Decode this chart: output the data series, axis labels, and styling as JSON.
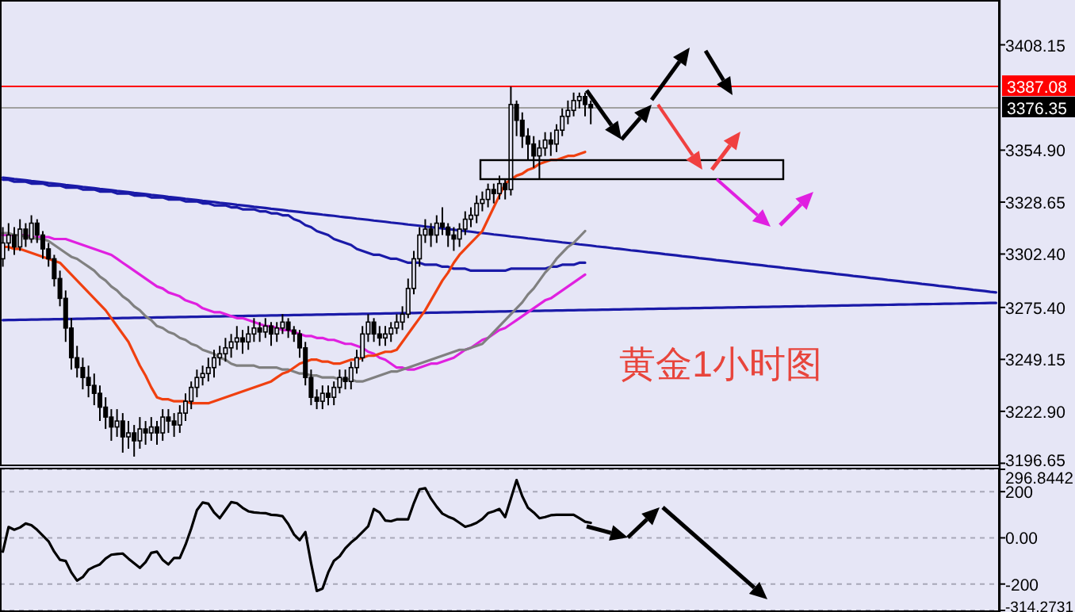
{
  "chart_data": [
    {
      "type": "candlestick",
      "color": "#000000",
      "annotations": [
        "黄金1小时图"
      ],
      "categories": [
        null,
        null,
        null,
        null,
        null,
        null,
        null,
        null,
        null,
        null,
        null,
        null,
        null,
        null,
        null,
        null,
        null,
        null,
        null,
        null,
        null,
        null,
        null,
        null,
        null,
        null,
        null,
        null,
        null,
        null,
        null,
        null,
        null,
        null,
        null,
        null,
        null,
        null,
        null,
        null,
        null,
        null,
        null,
        null,
        null,
        null,
        null,
        null,
        null,
        null,
        null,
        null,
        null,
        null,
        null,
        null,
        null,
        null,
        null,
        null,
        null,
        null,
        null,
        null,
        null,
        null,
        null,
        null,
        null,
        null,
        null,
        null,
        null,
        null,
        null,
        null,
        null,
        null,
        null,
        null,
        null,
        null,
        null,
        null,
        null,
        null,
        null,
        null,
        null,
        null,
        null,
        null,
        null,
        null,
        null,
        null,
        null,
        null,
        null,
        null,
        null,
        null,
        null,
        null,
        null,
        null,
        null,
        null,
        null,
        null,
        null,
        null,
        null,
        null,
        null,
        null,
        null,
        null,
        null,
        null,
        null,
        null,
        null,
        null,
        null,
        null,
        null,
        null,
        null,
        null,
        null,
        null,
        null,
        null,
        null,
        null,
        null,
        null,
        null,
        null,
        null,
        null,
        null,
        null,
        null,
        null,
        null,
        null,
        null,
        null,
        null,
        null,
        null,
        null,
        null,
        null,
        null,
        null,
        null,
        null,
        null,
        null,
        null,
        null,
        null,
        null,
        null,
        null,
        null,
        null,
        null,
        null,
        null,
        null,
        null
      ],
      "ohlc": [
        [
          3300,
          3316,
          3296,
          3308
        ],
        [
          3308,
          3318,
          3304,
          3312
        ],
        [
          3312,
          3316,
          3302,
          3306
        ],
        [
          3306,
          3320,
          3304,
          3315
        ],
        [
          3315,
          3318,
          3306,
          3310
        ],
        [
          3310,
          3322,
          3308,
          3318
        ],
        [
          3318,
          3320,
          3308,
          3312
        ],
        [
          3312,
          3314,
          3300,
          3305
        ],
        [
          3305,
          3308,
          3296,
          3300
        ],
        [
          3300,
          3302,
          3286,
          3290
        ],
        [
          3290,
          3294,
          3276,
          3280
        ],
        [
          3280,
          3284,
          3258,
          3265
        ],
        [
          3265,
          3270,
          3244,
          3250
        ],
        [
          3250,
          3256,
          3240,
          3245
        ],
        [
          3245,
          3250,
          3234,
          3240
        ],
        [
          3240,
          3246,
          3230,
          3236
        ],
        [
          3236,
          3242,
          3226,
          3232
        ],
        [
          3232,
          3236,
          3218,
          3225
        ],
        [
          3225,
          3230,
          3214,
          3220
        ],
        [
          3220,
          3224,
          3208,
          3215
        ],
        [
          3215,
          3224,
          3210,
          3218
        ],
        [
          3218,
          3222,
          3202,
          3210
        ],
        [
          3210,
          3218,
          3204,
          3212
        ],
        [
          3212,
          3216,
          3200,
          3208
        ],
        [
          3208,
          3220,
          3204,
          3214
        ],
        [
          3214,
          3218,
          3206,
          3212
        ],
        [
          3212,
          3220,
          3208,
          3215
        ],
        [
          3215,
          3218,
          3206,
          3212
        ],
        [
          3212,
          3224,
          3208,
          3220
        ],
        [
          3220,
          3224,
          3212,
          3218
        ],
        [
          3218,
          3222,
          3210,
          3216
        ],
        [
          3216,
          3226,
          3212,
          3222
        ],
        [
          3222,
          3232,
          3218,
          3228
        ],
        [
          3228,
          3238,
          3224,
          3235
        ],
        [
          3235,
          3244,
          3230,
          3240
        ],
        [
          3240,
          3246,
          3236,
          3242
        ],
        [
          3242,
          3250,
          3238,
          3245
        ],
        [
          3245,
          3254,
          3240,
          3250
        ],
        [
          3250,
          3256,
          3246,
          3252
        ],
        [
          3252,
          3260,
          3248,
          3255
        ],
        [
          3255,
          3262,
          3250,
          3258
        ],
        [
          3258,
          3266,
          3254,
          3260
        ],
        [
          3260,
          3264,
          3252,
          3258
        ],
        [
          3258,
          3266,
          3254,
          3262
        ],
        [
          3262,
          3270,
          3258,
          3265
        ],
        [
          3265,
          3268,
          3258,
          3263
        ],
        [
          3263,
          3270,
          3260,
          3266
        ],
        [
          3266,
          3268,
          3256,
          3262
        ],
        [
          3262,
          3268,
          3258,
          3265
        ],
        [
          3265,
          3272,
          3262,
          3268
        ],
        [
          3268,
          3270,
          3260,
          3264
        ],
        [
          3264,
          3266,
          3258,
          3262
        ],
        [
          3262,
          3264,
          3250,
          3255
        ],
        [
          3255,
          3258,
          3236,
          3240
        ],
        [
          3240,
          3244,
          3226,
          3230
        ],
        [
          3230,
          3234,
          3224,
          3228
        ],
        [
          3228,
          3236,
          3224,
          3232
        ],
        [
          3232,
          3236,
          3226,
          3230
        ],
        [
          3230,
          3238,
          3226,
          3235
        ],
        [
          3235,
          3244,
          3232,
          3240
        ],
        [
          3240,
          3244,
          3234,
          3238
        ],
        [
          3238,
          3248,
          3234,
          3245
        ],
        [
          3245,
          3254,
          3242,
          3250
        ],
        [
          3250,
          3266,
          3248,
          3262
        ],
        [
          3262,
          3272,
          3258,
          3268
        ],
        [
          3268,
          3270,
          3258,
          3262
        ],
        [
          3262,
          3266,
          3256,
          3260
        ],
        [
          3260,
          3266,
          3256,
          3262
        ],
        [
          3262,
          3268,
          3258,
          3265
        ],
        [
          3265,
          3272,
          3262,
          3268
        ],
        [
          3268,
          3276,
          3264,
          3272
        ],
        [
          3272,
          3290,
          3270,
          3285
        ],
        [
          3285,
          3304,
          3282,
          3300
        ],
        [
          3300,
          3316,
          3296,
          3312
        ],
        [
          3312,
          3320,
          3308,
          3315
        ],
        [
          3315,
          3318,
          3306,
          3312
        ],
        [
          3312,
          3322,
          3308,
          3318
        ],
        [
          3318,
          3326,
          3312,
          3316
        ],
        [
          3316,
          3318,
          3306,
          3312
        ],
        [
          3312,
          3316,
          3304,
          3310
        ],
        [
          3310,
          3318,
          3306,
          3315
        ],
        [
          3315,
          3324,
          3312,
          3320
        ],
        [
          3320,
          3326,
          3316,
          3322
        ],
        [
          3322,
          3332,
          3318,
          3328
        ],
        [
          3328,
          3334,
          3324,
          3330
        ],
        [
          3330,
          3338,
          3326,
          3335
        ],
        [
          3335,
          3338,
          3328,
          3333
        ],
        [
          3333,
          3342,
          3330,
          3338
        ],
        [
          3338,
          3340,
          3330,
          3335
        ],
        [
          3335,
          3387,
          3332,
          3378
        ],
        [
          3378,
          3380,
          3362,
          3370
        ],
        [
          3370,
          3374,
          3356,
          3362
        ],
        [
          3362,
          3366,
          3350,
          3358
        ],
        [
          3358,
          3362,
          3346,
          3352
        ],
        [
          3352,
          3360,
          3340,
          3356
        ],
        [
          3356,
          3364,
          3352,
          3360
        ],
        [
          3360,
          3364,
          3352,
          3358
        ],
        [
          3358,
          3368,
          3354,
          3365
        ],
        [
          3365,
          3376,
          3362,
          3372
        ],
        [
          3372,
          3380,
          3368,
          3375
        ],
        [
          3375,
          3384,
          3372,
          3380
        ],
        [
          3380,
          3384,
          3376,
          3382
        ],
        [
          3382,
          3384,
          3372,
          3378
        ],
        [
          3378,
          3380,
          3368,
          3376.35
        ],
        null,
        null,
        null,
        null,
        null,
        null,
        null,
        null,
        null,
        null,
        null,
        null,
        null,
        null,
        null,
        null,
        null,
        null,
        null,
        null,
        null,
        null,
        null,
        null,
        null,
        null,
        null,
        null,
        null,
        null,
        null,
        null,
        null,
        null,
        null,
        null,
        null,
        null,
        null,
        null,
        null,
        null,
        null,
        null,
        null,
        null,
        null,
        null,
        null,
        null,
        null,
        null,
        null,
        null,
        null,
        null,
        null,
        null,
        null,
        null,
        null,
        null,
        null,
        null,
        null,
        null,
        null,
        null,
        null,
        null,
        null
      ],
      "series": [
        {
          "type": "line",
          "color": "#1a1aa8",
          "values": [
            3341,
            3340.7,
            3340.3,
            3340,
            3339.7,
            3339.3,
            3339,
            3338.7,
            3338.3,
            3338,
            3337.7,
            3337.3,
            3337,
            3336.7,
            3336.3,
            3336,
            3335.7,
            3335.3,
            3335,
            3334.7,
            3334.3,
            3334,
            3333.7,
            3333.3,
            3333,
            3332.7,
            3332.3,
            3332,
            3331.7,
            3331.3,
            3331,
            3330.7,
            3330.3,
            3330,
            3329.7,
            3329.3,
            3329,
            3328.7,
            3328.3,
            3328,
            3327.7,
            3327.3,
            3327,
            3326.7,
            3326.3,
            3326,
            3325.7,
            3325.3,
            3325,
            3324.7,
            3324.3,
            3324,
            3323.7,
            3323.3,
            3323,
            3322.7,
            3322.3,
            3322,
            3321.7,
            3321.3,
            3321,
            3320.7,
            3320.3,
            3320,
            3319.7,
            3319.3,
            3319,
            3318.7,
            3318.3,
            3318,
            3317.7,
            3317.3,
            3317,
            3316.7,
            3316.3,
            3316,
            3315.7,
            3315.3,
            3315,
            3314.7,
            3314.3,
            3314,
            3313.7,
            3313.3,
            3313,
            3312.7,
            3312.3,
            3312,
            3311.7,
            3311.3,
            3311,
            3310.7,
            3310.3,
            3310,
            3309.7,
            3309.3,
            3309,
            3308.7,
            3308.3,
            3308,
            3307.7,
            3307.3,
            3307,
            3306.7,
            3306.3,
            3306,
            3305.7,
            3305.3,
            3305,
            3304.7,
            3304.3,
            3304,
            3303.7,
            3303.3,
            3303,
            3302.7,
            3302.3,
            3302,
            3301.7,
            3301.3,
            3301,
            3300.7,
            3300.3,
            3300,
            3299.7,
            3299.3,
            3299,
            3298.7,
            3298.3,
            3298,
            3297.7,
            3297.3,
            3297,
            3296.7,
            3296.3,
            3296,
            3295.7,
            3295.3,
            3295,
            3294.7,
            3294.3,
            3294,
            3293.7,
            3293.3,
            3293,
            3292.7,
            3292.3,
            3292,
            3291.7,
            3291.3,
            3291,
            3290.7,
            3290.3,
            3290,
            3289.7,
            3289.3,
            3289,
            3288.7,
            3288.3,
            3288,
            3287.7,
            3287.3,
            3287,
            3286.7,
            3286.3,
            3286,
            3285.7,
            3285.3,
            3285,
            3284.7,
            3284.3,
            3284,
            3283.7,
            3283.3,
            3283
          ]
        },
        {
          "type": "line",
          "color": "#1a1aa8",
          "values": [
            3269,
            3269.05,
            3269.1,
            3269.15,
            3269.2,
            3269.25,
            3269.3,
            3269.35,
            3269.4,
            3269.45,
            3269.5,
            3269.55,
            3269.6,
            3269.65,
            3269.7,
            3269.75,
            3269.8,
            3269.85,
            3269.9,
            3269.95,
            3270,
            3270.05,
            3270.1,
            3270.15,
            3270.2,
            3270.25,
            3270.3,
            3270.35,
            3270.4,
            3270.45,
            3270.5,
            3270.55,
            3270.6,
            3270.65,
            3270.7,
            3270.75,
            3270.8,
            3270.85,
            3270.9,
            3270.95,
            3271,
            3271.05,
            3271.1,
            3271.15,
            3271.2,
            3271.25,
            3271.3,
            3271.35,
            3271.4,
            3271.45,
            3271.5,
            3271.55,
            3271.6,
            3271.65,
            3271.7,
            3271.75,
            3271.8,
            3271.85,
            3271.9,
            3271.95,
            3272,
            3272.05,
            3272.1,
            3272.15,
            3272.2,
            3272.25,
            3272.3,
            3272.35,
            3272.4,
            3272.45,
            3272.5,
            3272.55,
            3272.6,
            3272.65,
            3272.7,
            3272.75,
            3272.8,
            3272.85,
            3272.9,
            3272.95,
            3273,
            3273.05,
            3273.1,
            3273.15,
            3273.2,
            3273.25,
            3273.3,
            3273.35,
            3273.4,
            3273.45,
            3273.5,
            3273.55,
            3273.6,
            3273.65,
            3273.7,
            3273.75,
            3273.8,
            3273.85,
            3273.9,
            3273.95,
            3274,
            3274.05,
            3274.1,
            3274.15,
            3274.2,
            3274.25,
            3274.3,
            3274.35,
            3274.4,
            3274.45,
            3274.5,
            3274.55,
            3274.6,
            3274.65,
            3274.7,
            3274.75,
            3274.8,
            3274.85,
            3274.9,
            3274.95,
            3275,
            3275.05,
            3275.1,
            3275.15,
            3275.2,
            3275.25,
            3275.3,
            3275.35,
            3275.4,
            3275.45,
            3275.5,
            3275.55,
            3275.6,
            3275.65,
            3275.7,
            3275.75,
            3275.8,
            3275.85,
            3275.9,
            3275.95,
            3276,
            3276.05,
            3276.1,
            3276.15,
            3276.2,
            3276.25,
            3276.3,
            3276.35,
            3276.4,
            3276.45,
            3276.5,
            3276.55,
            3276.6,
            3276.65,
            3276.7,
            3276.75,
            3276.8,
            3276.85,
            3276.9,
            3276.95,
            3277,
            3277.05,
            3277.1,
            3277.15,
            3277.2,
            3277.25,
            3277.3,
            3277.35,
            3277.4,
            3277.45,
            3277.5,
            3277.55,
            3277.6,
            3277.65,
            3277.7
          ]
        },
        {
          "type": "line",
          "color": "#1a1aa8",
          "values": [
            3340,
            3340,
            3339,
            3339,
            3339,
            3338,
            3338,
            3338,
            3337,
            3337,
            3337,
            3336,
            3336,
            3336,
            3335,
            3335,
            3335,
            3334,
            3334,
            3334,
            3333,
            3333,
            3333,
            3332,
            3332,
            3332,
            3331,
            3331,
            3331,
            3330,
            3330,
            3330,
            3329,
            3329,
            3329,
            3328,
            3328,
            3327,
            3327,
            3327,
            3326,
            3326,
            3325,
            3325,
            3325,
            3324,
            3324,
            3323,
            3323,
            3322,
            3322,
            3320,
            3319,
            3317,
            3316,
            3314,
            3313,
            3312,
            3310,
            3309,
            3308,
            3307,
            3305,
            3304,
            3303,
            3302,
            3302,
            3301,
            3300,
            3300,
            3299,
            3298,
            3298,
            3298,
            3297,
            3297,
            3297,
            3296,
            3296,
            3295,
            3295,
            3295,
            3294,
            3294,
            3294,
            3294,
            3294,
            3294,
            3294,
            3295,
            3295,
            3295,
            3295,
            3295,
            3295,
            3295,
            3296,
            3296,
            3297,
            3297,
            3297,
            3298,
            3298,
            null,
            null,
            null,
            null,
            null,
            null,
            null,
            null,
            null,
            null,
            null,
            null,
            null,
            null,
            null,
            null,
            null,
            null,
            null,
            null,
            null,
            null,
            null,
            null,
            null,
            null,
            null,
            null,
            null,
            null,
            null,
            null,
            null,
            null,
            null,
            null,
            null,
            null,
            null,
            null,
            null,
            null,
            null,
            null,
            null,
            null,
            null,
            null,
            null,
            null,
            null,
            null,
            null,
            null,
            null,
            null,
            null,
            null,
            null,
            null,
            null,
            null,
            null,
            null,
            null,
            null,
            null,
            null,
            null,
            null,
            null,
            null
          ]
        },
        {
          "type": "line",
          "color": "#e020e0",
          "values": [
            3312,
            3312,
            3312,
            3312,
            3312,
            3311,
            3311,
            3311,
            3311,
            3310,
            3310,
            3310,
            3309,
            3308,
            3307,
            3306,
            3305,
            3304,
            3303,
            3302,
            3300,
            3298,
            3296,
            3294,
            3292,
            3290,
            3288,
            3286,
            3285,
            3283,
            3282,
            3281,
            3279,
            3278,
            3277,
            3275,
            3274,
            3273,
            3273,
            3272,
            3271,
            3270,
            3270,
            3269,
            3268,
            3267,
            3266,
            3266,
            3265,
            3264,
            3264,
            3263,
            3262,
            3261,
            3261,
            3260,
            3260,
            3259,
            3259,
            3258,
            3257,
            3257,
            3256,
            3255,
            3253,
            3252,
            3250,
            3249,
            3247,
            3245,
            3245,
            3244,
            3244,
            3245,
            3246,
            3247,
            3247,
            3248,
            3249,
            3250,
            3252,
            3254,
            3255,
            3257,
            3259,
            3260,
            3262,
            3264,
            3265,
            3267,
            3269,
            3271,
            3273,
            3275,
            3277,
            3279,
            3280,
            3282,
            3284,
            3286,
            3288,
            3290,
            3292,
            null,
            null,
            null,
            null,
            null,
            null,
            null,
            null,
            null,
            null,
            null,
            null,
            null,
            null,
            null,
            null,
            null,
            null,
            null,
            null,
            null,
            null,
            null,
            null,
            null,
            null,
            null,
            null,
            null,
            null,
            null,
            null,
            null,
            null,
            null,
            null,
            null,
            null,
            null,
            null,
            null,
            null,
            null,
            null,
            null,
            null,
            null,
            null,
            null,
            null,
            null,
            null,
            null,
            null,
            null,
            null,
            null,
            null,
            null,
            null,
            null,
            null,
            null,
            null,
            null,
            null,
            null,
            null,
            null,
            null,
            null,
            null
          ]
        },
        {
          "type": "line",
          "color": "#808080",
          "values": [
            3313,
            3313,
            3312,
            3312,
            3311,
            3311,
            3310,
            3310,
            3309,
            3307,
            3305,
            3303,
            3301,
            3300,
            3298,
            3296,
            3294,
            3291,
            3289,
            3286,
            3284,
            3281,
            3279,
            3276,
            3274,
            3271,
            3269,
            3266,
            3265,
            3263,
            3262,
            3260,
            3259,
            3257,
            3256,
            3254,
            3253,
            3252,
            3250,
            3249,
            3247,
            3246,
            3246,
            3246,
            3246,
            3245,
            3245,
            3245,
            3245,
            3244,
            3244,
            3243,
            3242,
            3242,
            3241,
            3241,
            3240,
            3240,
            3240,
            3239,
            3239,
            3239,
            3238,
            3238,
            3239,
            3240,
            3241,
            3242,
            3243,
            3243,
            3244,
            3245,
            3246,
            3247,
            3248,
            3249,
            3250,
            3251,
            3252,
            3253,
            3254,
            3254,
            3255,
            3256,
            3257,
            3260,
            3263,
            3266,
            3269,
            3272,
            3275,
            3278,
            3282,
            3285,
            3289,
            3293,
            3296,
            3300,
            3303,
            3306,
            3308,
            3311,
            3314,
            null,
            null,
            null,
            null,
            null,
            null,
            null,
            null,
            null,
            null,
            null,
            null,
            null,
            null,
            null,
            null,
            null,
            null,
            null,
            null,
            null,
            null,
            null,
            null,
            null,
            null,
            null,
            null,
            null,
            null,
            null,
            null,
            null,
            null,
            null,
            null,
            null,
            null,
            null,
            null,
            null,
            null,
            null,
            null,
            null,
            null,
            null,
            null,
            null,
            null,
            null,
            null,
            null,
            null,
            null,
            null,
            null,
            null,
            null,
            null,
            null,
            null,
            null,
            null,
            null,
            null,
            null,
            null,
            null,
            null,
            null,
            null
          ]
        },
        {
          "type": "line",
          "color": "#f04010",
          "values": [
            3306,
            3306,
            3305,
            3305,
            3304,
            3303,
            3302,
            3301,
            3300,
            3299,
            3298,
            3295,
            3292,
            3289,
            3286,
            3283,
            3280,
            3277,
            3274,
            3270,
            3266,
            3262,
            3258,
            3252,
            3246,
            3241,
            3235,
            3230,
            3229,
            3229,
            3228,
            3228,
            3228,
            3227,
            3227,
            3227,
            3227,
            3228,
            3229,
            3230,
            3231,
            3232,
            3233,
            3234,
            3235,
            3236,
            3237,
            3238,
            3240,
            3242,
            3243,
            3245,
            3247,
            3248,
            3249,
            3249,
            3248,
            3248,
            3247,
            3247,
            3248,
            3249,
            3249,
            3250,
            3251,
            3251,
            3252,
            3253,
            3253,
            3254,
            3258,
            3262,
            3266,
            3270,
            3274,
            3279,
            3284,
            3289,
            3293,
            3298,
            3302,
            3305,
            3308,
            3311,
            3314,
            3320,
            3326,
            3332,
            3338,
            3340,
            3342,
            3343,
            3345,
            3346,
            3348,
            3349,
            3350,
            3350,
            3351,
            3352,
            3352,
            3353,
            3354,
            null,
            null,
            null,
            null,
            null,
            null,
            null,
            null,
            null,
            null,
            null,
            null,
            null,
            null,
            null,
            null,
            null,
            null,
            null,
            null,
            null,
            null,
            null,
            null,
            null,
            null,
            null,
            null,
            null,
            null,
            null,
            null,
            null,
            null,
            null,
            null,
            null,
            null,
            null,
            null,
            null,
            null,
            null,
            null,
            null,
            null,
            null,
            null,
            null,
            null,
            null,
            null,
            null,
            null,
            null,
            null,
            null,
            null,
            null,
            null,
            null,
            null,
            null,
            null,
            null,
            null,
            null,
            null,
            null,
            null,
            null,
            null
          ]
        }
      ],
      "ylim": [
        3196,
        3430
      ],
      "yticks": [
        {
          "value": 3408.15,
          "label": "3408.15"
        },
        {
          "value": 3354.9,
          "label": "3354.90"
        },
        {
          "value": 3328.65,
          "label": "3328.65"
        },
        {
          "value": 3302.4,
          "label": "3302.40"
        },
        {
          "value": 3275.4,
          "label": "3275.40"
        },
        {
          "value": 3249.15,
          "label": "3249.15"
        },
        {
          "value": 3222.9,
          "label": "3222.90"
        },
        {
          "value": 3196.65,
          "label": "3196.65"
        }
      ],
      "ref_lines": [
        {
          "axis": "y",
          "value": 3387.08,
          "label": "3387.08",
          "color": "#ff0000"
        },
        {
          "axis": "y",
          "value": 3376.35,
          "label": "3376.35",
          "color": "#a0a0a0"
        }
      ],
      "tick_labels": "y"
    },
    {
      "type": "line",
      "categories": [
        null,
        null,
        null,
        null,
        null,
        null,
        null,
        null,
        null,
        null,
        null,
        null,
        null,
        null,
        null,
        null,
        null,
        null,
        null,
        null,
        null,
        null,
        null,
        null,
        null,
        null,
        null,
        null,
        null,
        null,
        null,
        null,
        null,
        null,
        null,
        null,
        null,
        null,
        null,
        null,
        null,
        null,
        null,
        null,
        null,
        null,
        null,
        null,
        null,
        null,
        null,
        null,
        null,
        null,
        null,
        null,
        null,
        null,
        null,
        null,
        null,
        null,
        null,
        null,
        null,
        null,
        null,
        null,
        null,
        null,
        null,
        null,
        null,
        null,
        null,
        null,
        null,
        null,
        null,
        null,
        null,
        null,
        null,
        null,
        null,
        null,
        null,
        null,
        null,
        null,
        null,
        null,
        null,
        null,
        null,
        null,
        null,
        null,
        null,
        null,
        null,
        null,
        null,
        null,
        null,
        null,
        null,
        null,
        null,
        null,
        null,
        null,
        null,
        null,
        null,
        null,
        null,
        null,
        null,
        null,
        null,
        null,
        null,
        null,
        null,
        null,
        null,
        null,
        null,
        null,
        null,
        null,
        null,
        null,
        null,
        null,
        null,
        null,
        null,
        null,
        null,
        null,
        null,
        null,
        null,
        null,
        null,
        null,
        null,
        null,
        null,
        null,
        null,
        null,
        null,
        null,
        null,
        null,
        null,
        null,
        null,
        null,
        null,
        null,
        null,
        null,
        null,
        null,
        null,
        null,
        null,
        null,
        null,
        null,
        null
      ],
      "series": [
        {
          "color": "#000000",
          "values": [
            -60,
            47,
            35,
            45,
            62,
            55,
            35,
            10,
            -15,
            -60,
            -95,
            -100,
            -150,
            -185,
            -170,
            -138,
            -125,
            -115,
            -90,
            -73,
            -70,
            -68,
            -90,
            -110,
            -130,
            -105,
            -65,
            -60,
            -95,
            -115,
            -87,
            -87,
            -30,
            40,
            120,
            153,
            148,
            110,
            85,
            120,
            155,
            150,
            130,
            115,
            110,
            108,
            107,
            100,
            98,
            94,
            60,
            15,
            -10,
            25,
            -110,
            -230,
            -220,
            -150,
            -100,
            -80,
            -45,
            -20,
            0,
            25,
            50,
            125,
            110,
            75,
            72,
            80,
            80,
            80,
            150,
            210,
            215,
            170,
            135,
            105,
            92,
            82,
            65,
            48,
            55,
            65,
            82,
            107,
            115,
            125,
            90,
            170,
            250,
            180,
            130,
            110,
            85,
            90,
            98,
            100,
            100,
            100,
            100,
            85,
            70,
            65,
            null,
            null,
            null,
            null,
            null,
            null,
            null,
            null,
            null,
            null,
            null,
            null,
            null,
            null,
            null,
            null,
            null,
            null,
            null,
            null,
            null,
            null,
            null,
            null,
            null,
            null,
            null,
            null,
            null,
            null,
            null,
            null,
            null,
            null,
            null,
            null,
            null,
            null,
            null,
            null,
            null,
            null,
            null,
            null,
            null,
            null,
            null,
            null,
            null,
            null,
            null,
            null,
            null,
            null,
            null,
            null,
            null,
            null,
            null,
            null,
            null,
            null,
            null,
            null,
            null,
            null,
            null,
            null,
            null,
            null,
            null
          ]
        }
      ],
      "ylim": [
        -314.2731,
        296.8442
      ],
      "yticks": [
        {
          "value": 296.8442,
          "label": "296.8442"
        },
        200,
        {
          "value": 0,
          "label": "0.00"
        },
        -200,
        {
          "value": -314.2731,
          "label": "-314.2731"
        }
      ],
      "grid": "y",
      "tick_labels": "y"
    }
  ]
}
